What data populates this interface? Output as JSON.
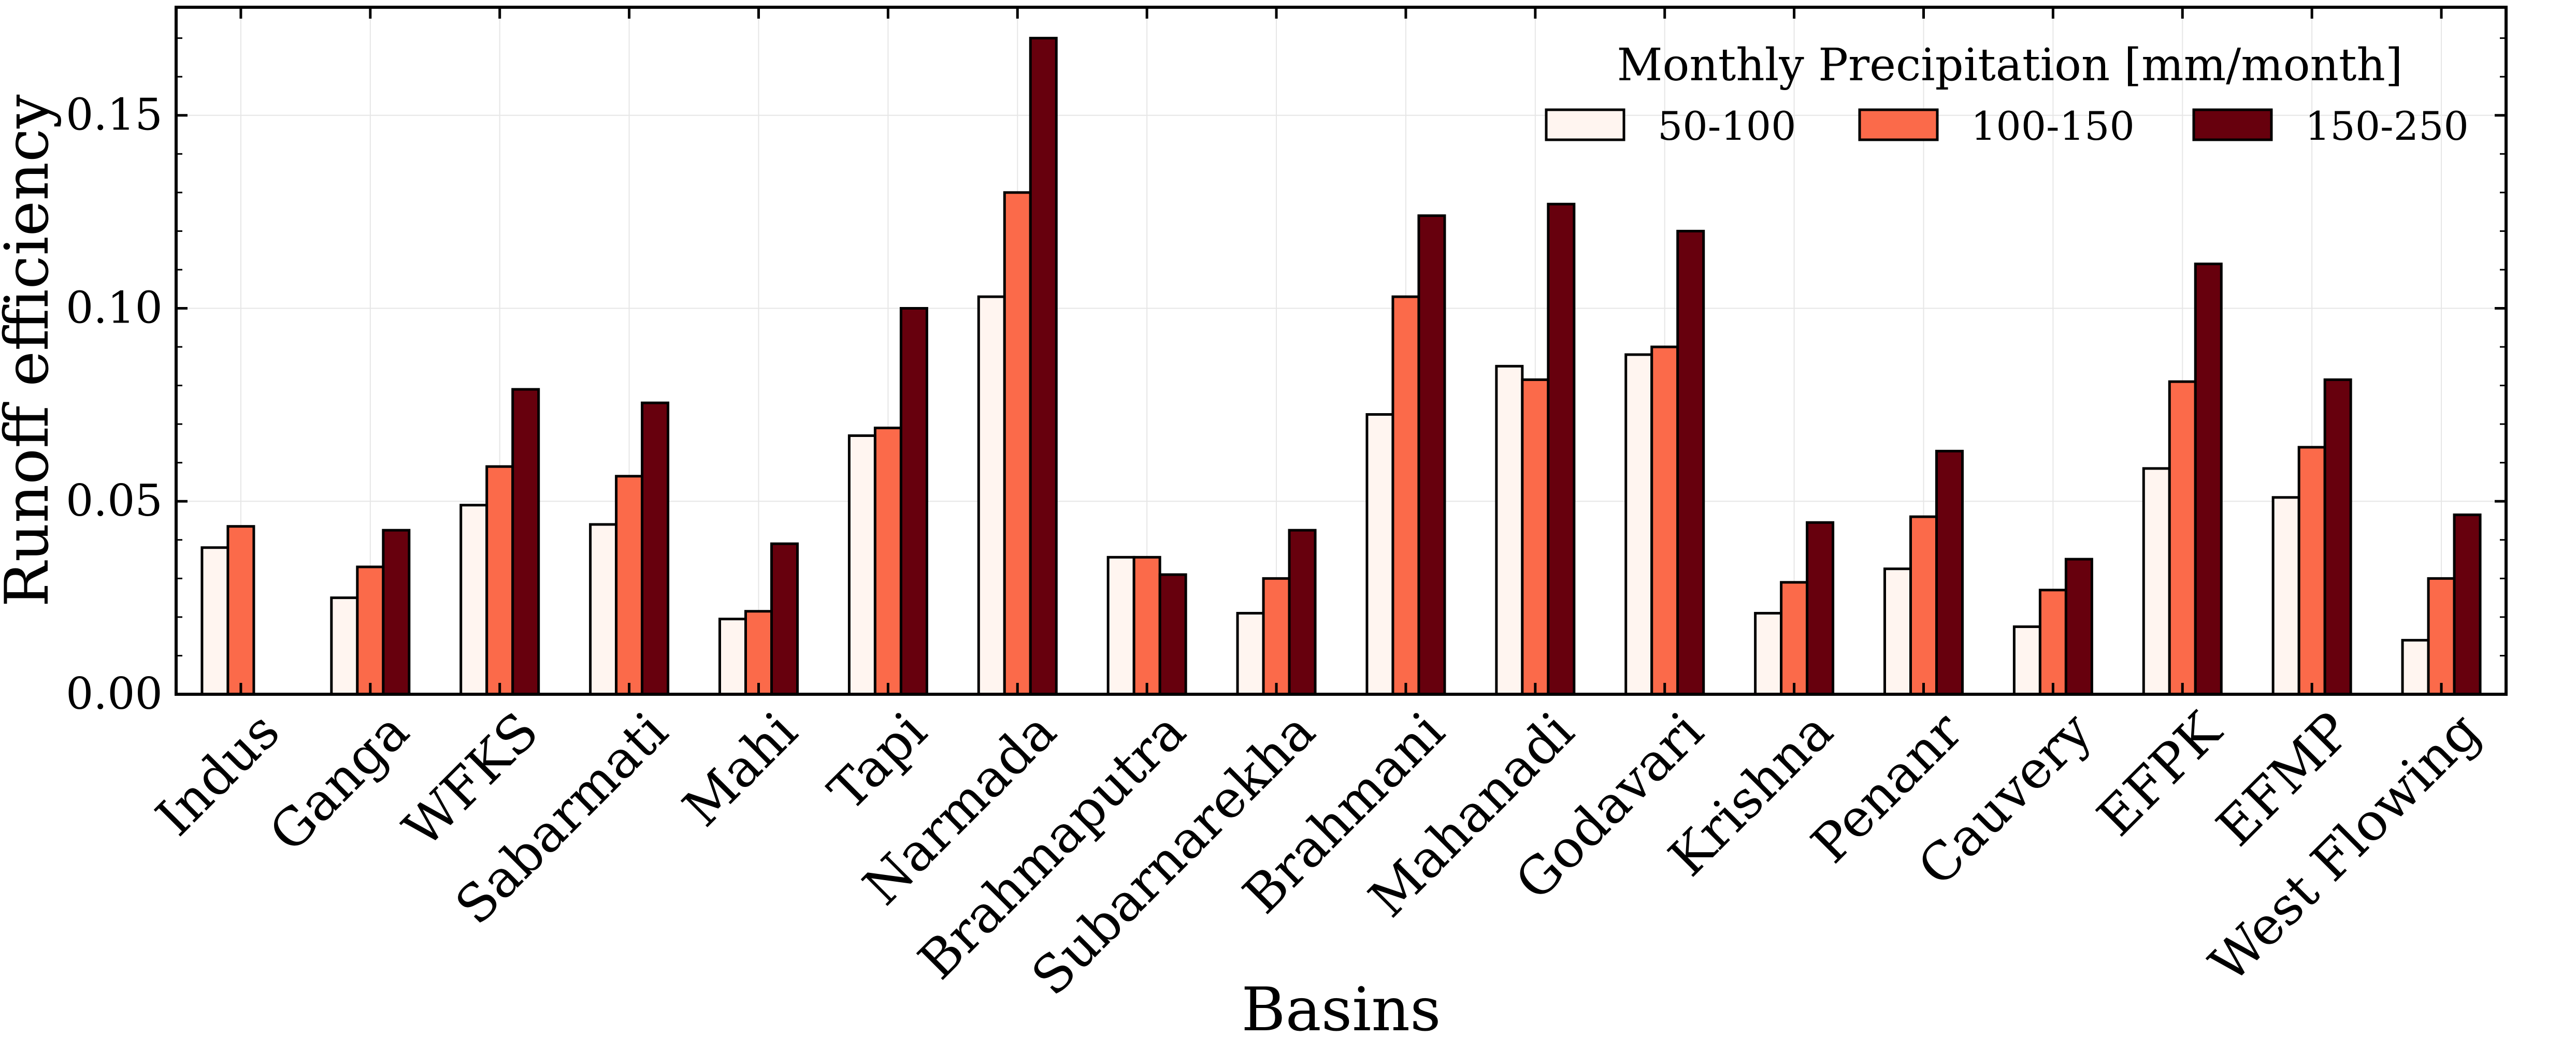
{
  "chart_data": {
    "type": "bar",
    "title": "",
    "xlabel": "Basins",
    "ylabel": "Runoff efficiency",
    "ylim": [
      0,
      0.178
    ],
    "yticks": [
      "0.00",
      "0.05",
      "0.10",
      "0.15"
    ],
    "ytick_values": [
      0,
      0.05,
      0.1,
      0.15
    ],
    "grid": true,
    "legend": {
      "title": "Monthly Precipitation [mm/month]",
      "placement": "top-right"
    },
    "categories": [
      "Indus",
      "Ganga",
      "WFKS",
      "Sabarmati",
      "Mahi",
      "Tapi",
      "Narmada",
      "Brahmaputra",
      "Subarnarekha",
      "Brahmani",
      "Mahanadi",
      "Godavari",
      "Krishna",
      "Penanr",
      "Cauvery",
      "EFPK",
      "EFMP",
      "West Flowing"
    ],
    "series": [
      {
        "name": "50-100",
        "color": "#fff5f0",
        "values": [
          0.038,
          0.025,
          0.049,
          0.044,
          0.0195,
          0.067,
          0.103,
          0.0355,
          0.021,
          0.0725,
          0.085,
          0.088,
          0.021,
          0.0325,
          0.0175,
          0.0585,
          0.051,
          0.014
        ]
      },
      {
        "name": "100-150",
        "color": "#fb6a4a",
        "values": [
          0.0435,
          0.033,
          0.059,
          0.0565,
          0.0215,
          0.069,
          0.13,
          0.0355,
          0.03,
          0.103,
          0.0815,
          0.09,
          0.029,
          0.046,
          0.027,
          0.081,
          0.064,
          0.03
        ]
      },
      {
        "name": "150-250",
        "color": "#67000d",
        "values": [
          null,
          0.0425,
          0.079,
          0.0755,
          0.039,
          0.1,
          0.17,
          0.031,
          0.0425,
          0.124,
          0.127,
          0.12,
          0.0445,
          0.063,
          0.035,
          0.1115,
          0.0815,
          0.0465
        ]
      }
    ]
  }
}
